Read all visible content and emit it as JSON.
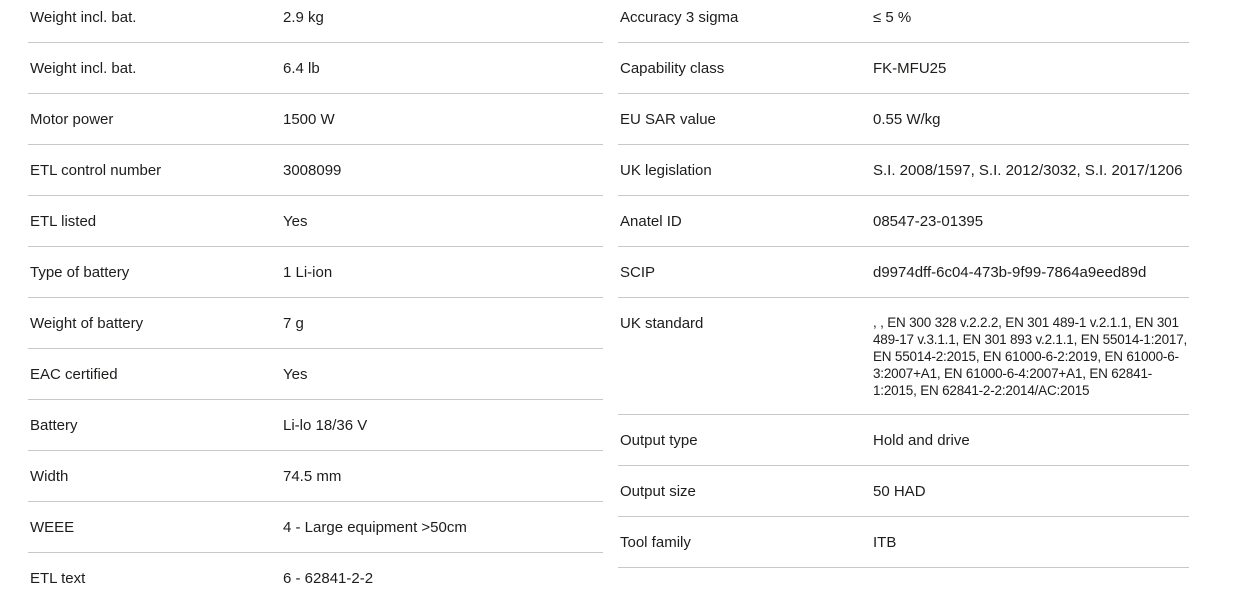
{
  "page": {
    "background_color": "#ffffff",
    "divider_color": "#c8c8c8",
    "text_color": "#1d1d1b"
  },
  "spec_table": {
    "left_column": {
      "rows": [
        {
          "label": "Weight incl. bat.",
          "value": "2.9 kg"
        },
        {
          "label": "Weight incl. bat.",
          "value": "6.4 lb"
        },
        {
          "label": "Motor power",
          "value": "1500 W"
        },
        {
          "label": "ETL control number",
          "value": "3008099"
        },
        {
          "label": "ETL listed",
          "value": "Yes"
        },
        {
          "label": "Type of battery",
          "value": "1 Li-ion"
        },
        {
          "label": "Weight of battery",
          "value": "7 g"
        },
        {
          "label": "EAC certified",
          "value": "Yes"
        },
        {
          "label": "Battery",
          "value": "Li-lo 18/36 V"
        },
        {
          "label": "Width",
          "value": "74.5 mm"
        },
        {
          "label": "WEEE",
          "value": "4 - Large equipment >50cm"
        },
        {
          "label": "ETL text",
          "value": "6 - 62841-2-2"
        }
      ]
    },
    "right_column": {
      "rows": [
        {
          "label": "Accuracy 3 sigma",
          "value": "≤ 5 %"
        },
        {
          "label": "Capability class",
          "value": "FK-MFU25"
        },
        {
          "label": "EU SAR value",
          "value": "0.55 W/kg"
        },
        {
          "label": "UK legislation",
          "value": "S.I. 2008/1597, S.I. 2012/3032, S.I. 2017/1206"
        },
        {
          "label": "Anatel ID",
          "value": "08547-23-01395"
        },
        {
          "label": "SCIP",
          "value": "d9974dff-6c04-473b-9f99-7864a9eed89d"
        },
        {
          "label": "UK standard",
          "value": ", , EN 300 328 v.2.2.2, EN 301 489-1 v.2.1.1, EN 301 489-17 v.3.1.1, EN 301 893 v.2.1.1, EN 55014-1:2017, EN 55014-2:2015, EN 61000-6-2:2019, EN 61000-6-3:2007+A1, EN 61000-6-4:2007+A1, EN 62841-1:2015, EN 62841-2-2:2014/AC:2015"
        },
        {
          "label": "Output type",
          "value": "Hold and drive"
        },
        {
          "label": "Output size",
          "value": "50 HAD"
        },
        {
          "label": "Tool family",
          "value": "ITB"
        }
      ]
    }
  }
}
